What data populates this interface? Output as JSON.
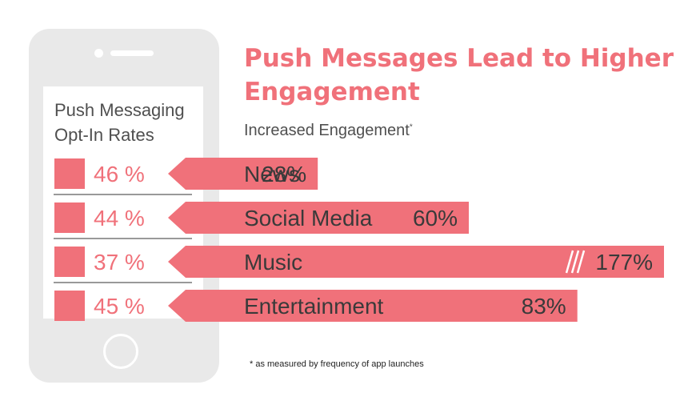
{
  "header": {
    "title": "Push Messages Lead to Higher Engagement",
    "subtitle": "Increased Engagement",
    "subtitle_mark": "*"
  },
  "phone": {
    "screen_title": "Push Messaging Opt-In Rates"
  },
  "footnote": "* as measured by frequency of app launches",
  "colors": {
    "accent": "#f0717a",
    "phone_body": "#e9e9e9",
    "text_gray": "#505050",
    "bar_text": "#3a3a3a",
    "divider": "#333333"
  },
  "chart_data": {
    "type": "bar",
    "categories": [
      "News",
      "Social Media",
      "Music",
      "Entertainment"
    ],
    "series": [
      {
        "values": [
          46,
          44,
          37,
          45
        ],
        "labels": [
          "46 %",
          "44 %",
          "37 %",
          "45 %"
        ]
      },
      {
        "values": [
          28,
          60,
          177,
          83
        ],
        "labels": [
          "28%",
          "60%",
          "177%",
          "83%"
        ],
        "axis_break": [
          false,
          false,
          true,
          false
        ]
      }
    ]
  }
}
